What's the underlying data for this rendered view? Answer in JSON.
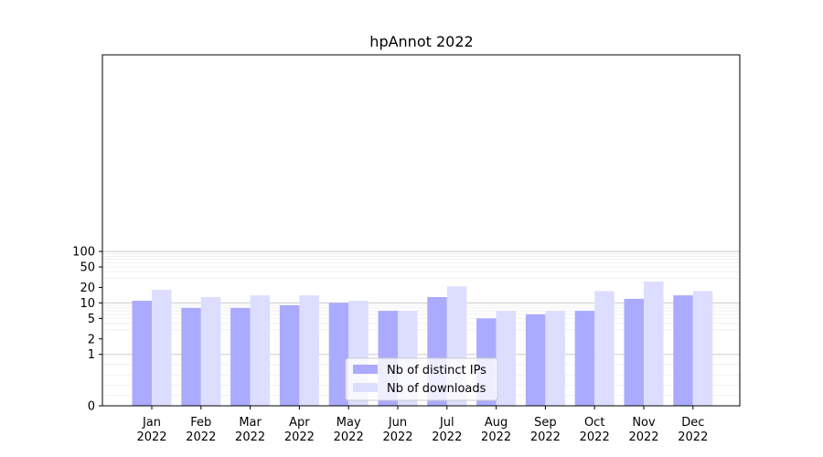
{
  "chart_data": {
    "type": "bar",
    "title": "hpAnnot 2022",
    "xlabel": "",
    "ylabel": "",
    "y_scale": "symlog",
    "ylim": [
      0,
      120
    ],
    "yticks": [
      {
        "value": 0,
        "label": "0"
      },
      {
        "value": 1,
        "label": "1"
      },
      {
        "value": 2,
        "label": "2"
      },
      {
        "value": 5,
        "label": "5"
      },
      {
        "value": 10,
        "label": "10"
      },
      {
        "value": 20,
        "label": "20"
      },
      {
        "value": 50,
        "label": "50"
      },
      {
        "value": 100,
        "label": "100"
      }
    ],
    "categories": [
      {
        "month": "Jan",
        "year": "2022"
      },
      {
        "month": "Feb",
        "year": "2022"
      },
      {
        "month": "Mar",
        "year": "2022"
      },
      {
        "month": "Apr",
        "year": "2022"
      },
      {
        "month": "May",
        "year": "2022"
      },
      {
        "month": "Jun",
        "year": "2022"
      },
      {
        "month": "Jul",
        "year": "2022"
      },
      {
        "month": "Aug",
        "year": "2022"
      },
      {
        "month": "Sep",
        "year": "2022"
      },
      {
        "month": "Oct",
        "year": "2022"
      },
      {
        "month": "Nov",
        "year": "2022"
      },
      {
        "month": "Dec",
        "year": "2022"
      }
    ],
    "series": [
      {
        "name": "Nb of distinct IPs",
        "color": "#aaaaff",
        "values": [
          11,
          8,
          8,
          9,
          10,
          7,
          13,
          5,
          6,
          7,
          12,
          14
        ]
      },
      {
        "name": "Nb of downloads",
        "color": "#ddddff",
        "values": [
          18,
          13,
          14,
          14,
          11,
          7,
          21,
          7,
          7,
          17,
          26,
          17
        ]
      }
    ],
    "grid": "horizontal",
    "legend_position": "bottom-center"
  }
}
